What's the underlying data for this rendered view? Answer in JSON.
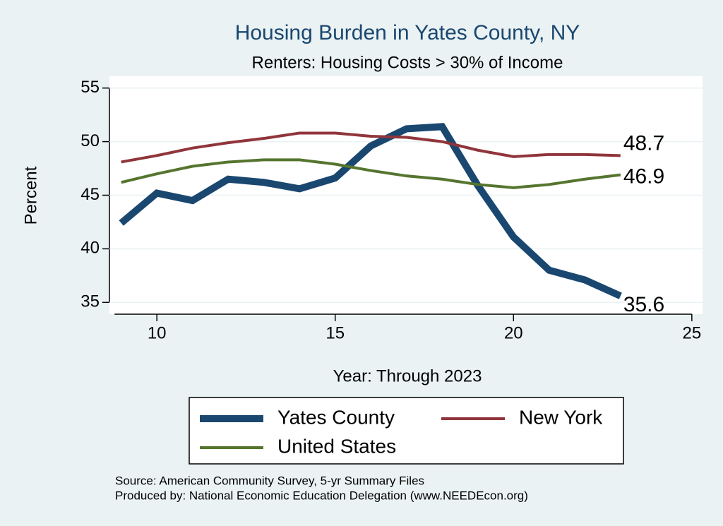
{
  "chart_data": {
    "type": "line",
    "title": "Housing Burden in Yates County, NY",
    "subtitle": "Renters: Housing Costs > 30% of Income",
    "x_label": "Year: Through 2023",
    "y_label": "Percent",
    "x": [
      9,
      10,
      11,
      12,
      13,
      14,
      15,
      16,
      17,
      18,
      19,
      20,
      21,
      22,
      23
    ],
    "series": [
      {
        "name": "Yates County",
        "color": "#1a476f",
        "values": [
          42.4,
          45.2,
          44.5,
          46.5,
          46.2,
          45.6,
          46.6,
          49.6,
          51.2,
          51.4,
          45.9,
          41.1,
          38.0,
          37.1,
          35.6
        ]
      },
      {
        "name": "New York",
        "color": "#90353b",
        "values": [
          48.1,
          48.7,
          49.4,
          49.9,
          50.3,
          50.8,
          50.8,
          50.5,
          50.4,
          50.0,
          49.2,
          48.6,
          48.8,
          48.8,
          48.7
        ]
      },
      {
        "name": "United States",
        "color": "#55752f",
        "values": [
          46.2,
          47.0,
          47.7,
          48.1,
          48.3,
          48.3,
          47.9,
          47.3,
          46.8,
          46.5,
          46.0,
          45.7,
          46.0,
          46.5,
          46.9
        ]
      }
    ],
    "xlim": [
      8.67,
      25.3
    ],
    "xticks": [
      10,
      15,
      20,
      25
    ],
    "ylim": [
      33.9,
      56.1
    ],
    "yticks": [
      35,
      40,
      45,
      50,
      55
    ],
    "grid": true,
    "notes": [
      "Source: American Community Survey, 5-yr Summary Files",
      "Produced by: National Economic Education Delegation (www.NEEDEcon.org)"
    ]
  }
}
